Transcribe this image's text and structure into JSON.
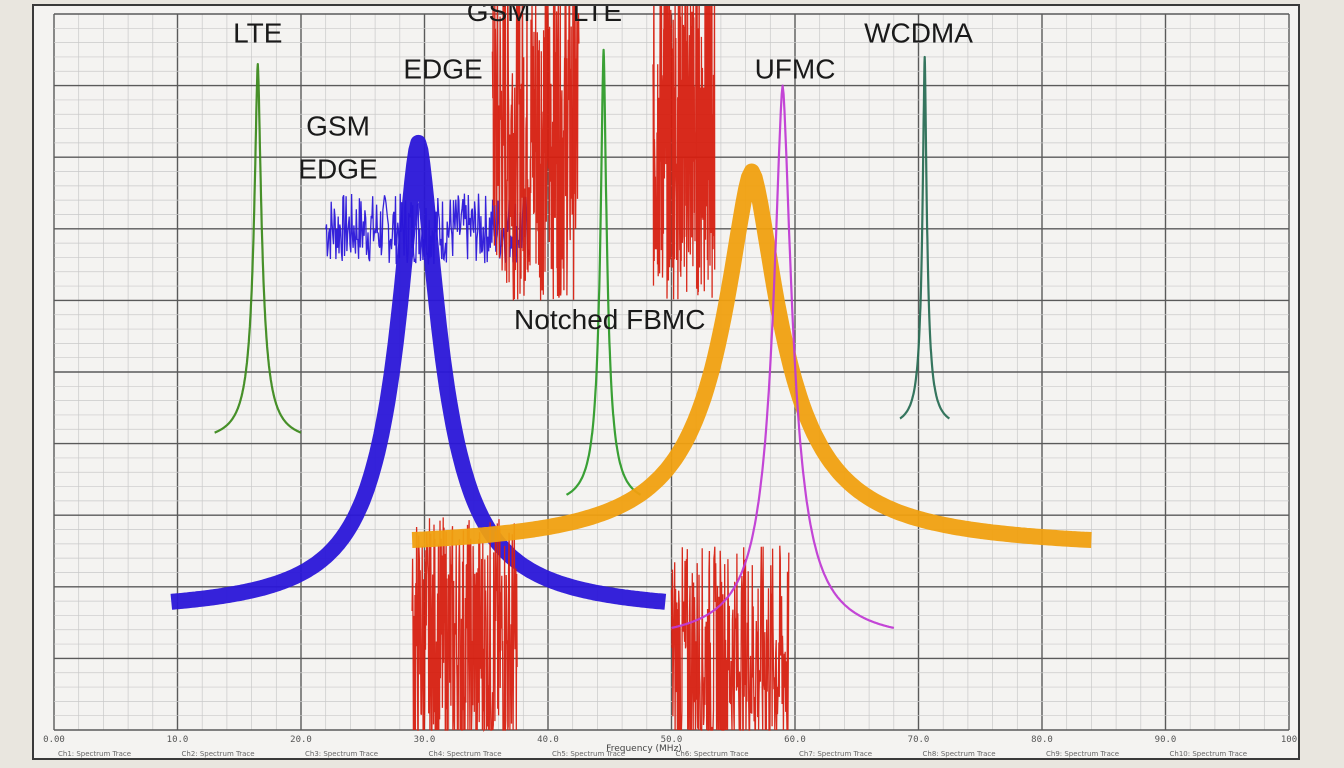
{
  "chart_data": {
    "type": "line",
    "title": "",
    "xlabel": "Frequency (MHz)",
    "ylabel": "",
    "xlim": [
      0,
      100
    ],
    "ylim": [
      0,
      100
    ],
    "grid": true,
    "x_ticks": [
      "0.00",
      "10.0",
      "20.0",
      "30.0",
      "40.0",
      "50.0",
      "60.0",
      "70.0",
      "80.0",
      "90.0",
      "100"
    ],
    "legend_placement": "bottom",
    "legend": [
      "Ch1: Spectrum Trace",
      "Ch2: Spectrum Trace",
      "Ch3: Spectrum Trace",
      "Ch4: Spectrum Trace",
      "Ch5: Spectrum Trace",
      "Ch6: Spectrum Trace",
      "Ch7: Spectrum Trace",
      "Ch8: Spectrum Trace",
      "Ch9: Spectrum Trace",
      "Ch10: Spectrum Trace"
    ],
    "series": [
      {
        "color": "#3d8a1e",
        "style": "peak",
        "center": 16.5,
        "peak": 93,
        "base": 40,
        "width": 7
      },
      {
        "color": "#2a16d8",
        "style": "peak",
        "center": 29.5,
        "peak": 82,
        "base": 16,
        "width": 40,
        "thick": true
      },
      {
        "color": "#2a16d8",
        "style": "noise",
        "x_start": 22,
        "x_end": 38.5,
        "level": 70,
        "amplitude": 5
      },
      {
        "color": "#d61f10",
        "style": "noise",
        "x_start": 35.5,
        "x_end": 42.5,
        "level": 84,
        "amplitude": 24
      },
      {
        "color": "#d61f10",
        "style": "noise",
        "x_start": 48.5,
        "x_end": 53.5,
        "level": 84,
        "amplitude": 24
      },
      {
        "color": "#d61f10",
        "style": "noise",
        "x_start": 29,
        "x_end": 37.5,
        "level": 12,
        "amplitude": 18
      },
      {
        "color": "#d61f10",
        "style": "noise",
        "x_start": 50,
        "x_end": 59.5,
        "level": 10,
        "amplitude": 16
      },
      {
        "color": "#2f9b2a",
        "style": "peak",
        "center": 44.5,
        "peak": 95,
        "base": 31,
        "width": 6
      },
      {
        "color": "#f0a010",
        "style": "peak",
        "center": 56.5,
        "peak": 78,
        "base": 25,
        "width": 55,
        "thick": true
      },
      {
        "color": "#c03bd4",
        "style": "peak",
        "center": 59,
        "peak": 90,
        "base": 12,
        "width": 18
      },
      {
        "color": "#2a6e55",
        "style": "peak",
        "center": 70.5,
        "peak": 94,
        "base": 42,
        "width": 4
      }
    ],
    "annotations": [
      {
        "text": "LTE",
        "x": 16.5,
        "y": 96
      },
      {
        "text": "GSM",
        "x": 36,
        "y": 99
      },
      {
        "text": "LTE",
        "x": 44,
        "y": 99
      },
      {
        "text": "EDGE",
        "x": 31.5,
        "y": 91
      },
      {
        "text": "GSM",
        "x": 23,
        "y": 83
      },
      {
        "text": "EDGE",
        "x": 23,
        "y": 77
      },
      {
        "text": "UFMC",
        "x": 60,
        "y": 91
      },
      {
        "text": "WCDMA",
        "x": 70,
        "y": 96
      },
      {
        "text": "Notched FBMC",
        "x": 45,
        "y": 56
      }
    ]
  }
}
